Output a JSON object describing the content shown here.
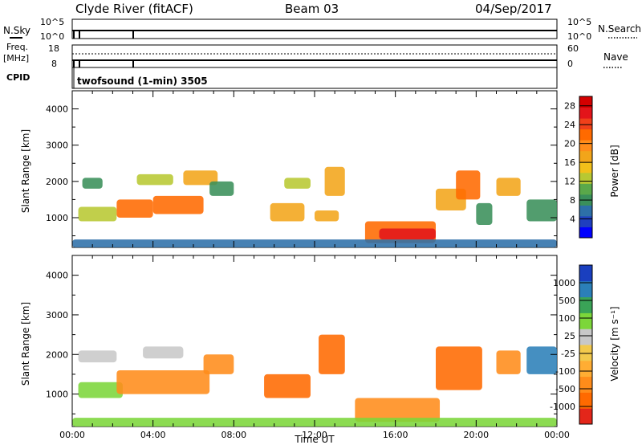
{
  "header": {
    "station": "Clyde River (fitACF)",
    "beam": "Beam 03",
    "date": "04/Sep/2017"
  },
  "status_panels": {
    "nsky_label": "N.Sky",
    "nsky_ticks": [
      "10^5",
      "10^0"
    ],
    "nsearch_label": "N.Search",
    "nsearch_ticks": [
      "10^5",
      "10^0"
    ],
    "freq_label_1": "Freq.",
    "freq_label_2": "[MHz]",
    "freq_ticks": [
      "18",
      "8"
    ],
    "nave_label": "Nave",
    "nave_ticks": [
      "60",
      "0"
    ],
    "cpid_label": "CPID",
    "cpid_text": "twofsound (1-min) 3505"
  },
  "chart_data": [
    {
      "type": "heatmap",
      "quantity": "power",
      "ylabel": "Slant Range [km]",
      "xlabel": "",
      "yticks": [
        "1000",
        "2000",
        "3000",
        "4000"
      ],
      "ylim": [
        180,
        4500
      ],
      "colorbar_label": "Power [dB]",
      "colorbar_ticks": [
        "4",
        "8",
        "12",
        "16",
        "20",
        "24",
        "28"
      ],
      "colorbar_range": [
        0,
        30
      ],
      "colors": {
        "low": "#0a0aff",
        "mid_low": "#2e8b57",
        "mid": "#e8c51a",
        "mid_high": "#ff7f00",
        "high": "#e31a1c"
      },
      "regions": [
        {
          "x_hours": [
            0.5,
            1.5
          ],
          "range_km": [
            1800,
            2100
          ],
          "value": 10
        },
        {
          "x_hours": [
            0.3,
            2.2
          ],
          "range_km": [
            900,
            1300
          ],
          "value": 16
        },
        {
          "x_hours": [
            2.2,
            4.0
          ],
          "range_km": [
            1000,
            1500
          ],
          "value": 22
        },
        {
          "x_hours": [
            4.0,
            6.5
          ],
          "range_km": [
            1100,
            1600
          ],
          "value": 24
        },
        {
          "x_hours": [
            3.2,
            5.0
          ],
          "range_km": [
            1900,
            2200
          ],
          "value": 14
        },
        {
          "x_hours": [
            5.5,
            7.2
          ],
          "range_km": [
            1900,
            2300
          ],
          "value": 18
        },
        {
          "x_hours": [
            6.8,
            8.0
          ],
          "range_km": [
            1600,
            2000
          ],
          "value": 12
        },
        {
          "x_hours": [
            9.8,
            11.5
          ],
          "range_km": [
            900,
            1400
          ],
          "value": 20
        },
        {
          "x_hours": [
            10.5,
            11.8
          ],
          "range_km": [
            1800,
            2100
          ],
          "value": 14
        },
        {
          "x_hours": [
            12.5,
            13.5
          ],
          "range_km": [
            1600,
            2400
          ],
          "value": 18
        },
        {
          "x_hours": [
            12.0,
            13.2
          ],
          "range_km": [
            900,
            1200
          ],
          "value": 20
        },
        {
          "x_hours": [
            14.5,
            18.0
          ],
          "range_km": [
            300,
            900
          ],
          "value": 22
        },
        {
          "x_hours": [
            15.2,
            18.0
          ],
          "range_km": [
            400,
            700
          ],
          "value": 28
        },
        {
          "x_hours": [
            18.0,
            19.5
          ],
          "range_km": [
            1200,
            1800
          ],
          "value": 20
        },
        {
          "x_hours": [
            19.0,
            20.2
          ],
          "range_km": [
            1500,
            2300
          ],
          "value": 24
        },
        {
          "x_hours": [
            20.0,
            20.8
          ],
          "range_km": [
            800,
            1400
          ],
          "value": 12
        },
        {
          "x_hours": [
            21.0,
            22.2
          ],
          "range_km": [
            1600,
            2100
          ],
          "value": 20
        },
        {
          "x_hours": [
            22.5,
            24.0
          ],
          "range_km": [
            900,
            1500
          ],
          "value": 10
        },
        {
          "x_hours": [
            0,
            24
          ],
          "range_km": [
            180,
            400
          ],
          "value": 8
        }
      ]
    },
    {
      "type": "heatmap",
      "quantity": "velocity",
      "ylabel": "Slant Range [km]",
      "xlabel": "Time UT",
      "xticks": [
        "00:00",
        "04:00",
        "08:00",
        "12:00",
        "16:00",
        "20:00",
        "00:00"
      ],
      "xlim_hours": [
        0,
        24
      ],
      "yticks": [
        "1000",
        "2000",
        "3000",
        "4000"
      ],
      "ylim": [
        180,
        4500
      ],
      "colorbar_label": "Velocity [m s⁻¹]",
      "colorbar_ticks": [
        "1000",
        "500",
        "100",
        "25",
        "-25",
        "-100",
        "-500",
        "-1000"
      ],
      "colors": {
        "pos_high": "#1a3fbf",
        "pos": "#2b7fb8",
        "pos_low": "#3aa357",
        "pos_small": "#7cd63a",
        "zero": "#c8c8c8",
        "neg_small": "#f2c94c",
        "neg": "#ff9a1a",
        "neg_mid": "#ff6a00",
        "neg_high": "#e3261a"
      },
      "regions": [
        {
          "x_hours": [
            0.3,
            2.2
          ],
          "range_km": [
            1800,
            2100
          ],
          "value": 0
        },
        {
          "x_hours": [
            0.3,
            2.5
          ],
          "range_km": [
            900,
            1300
          ],
          "value": 80
        },
        {
          "x_hours": [
            2.2,
            6.8
          ],
          "range_km": [
            1000,
            1600
          ],
          "value": -300
        },
        {
          "x_hours": [
            3.5,
            5.5
          ],
          "range_km": [
            1900,
            2200
          ],
          "value": 10
        },
        {
          "x_hours": [
            6.5,
            8.0
          ],
          "range_km": [
            1500,
            2000
          ],
          "value": -300
        },
        {
          "x_hours": [
            9.5,
            11.8
          ],
          "range_km": [
            900,
            1500
          ],
          "value": -600
        },
        {
          "x_hours": [
            12.2,
            13.5
          ],
          "range_km": [
            1500,
            2500
          ],
          "value": -700
        },
        {
          "x_hours": [
            14.0,
            18.2
          ],
          "range_km": [
            300,
            900
          ],
          "value": -300
        },
        {
          "x_hours": [
            18.0,
            20.3
          ],
          "range_km": [
            1100,
            2200
          ],
          "value": -700
        },
        {
          "x_hours": [
            21.0,
            22.2
          ],
          "range_km": [
            1500,
            2100
          ],
          "value": -300
        },
        {
          "x_hours": [
            22.5,
            24.0
          ],
          "range_km": [
            1500,
            2200
          ],
          "value": 600
        },
        {
          "x_hours": [
            0,
            24
          ],
          "range_km": [
            180,
            400
          ],
          "value": 50
        }
      ]
    }
  ]
}
